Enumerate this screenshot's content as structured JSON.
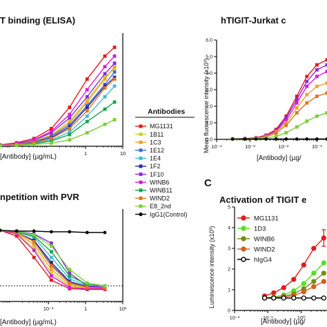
{
  "chart_data": [
    {
      "type": "line",
      "title": "T binding (ELISA)",
      "xlabel": "[Antibody] (µg/mL)",
      "ylabel": "",
      "xscale": "log",
      "xlim": [
        0.005,
        10
      ],
      "ylim": [
        0,
        3.2
      ],
      "ticks": [
        {
          "v": 1,
          "label": "1"
        },
        {
          "v": 10,
          "label": "10"
        }
      ],
      "x": [
        0.0016,
        0.005,
        0.014,
        0.041,
        0.12,
        0.37,
        1.1,
        3.3,
        6
      ],
      "series": [
        {
          "name": "MG1131",
          "values": [
            0.02,
            0.04,
            0.1,
            0.22,
            0.5,
            1.1,
            1.9,
            2.55,
            2.8
          ]
        },
        {
          "name": "1B11",
          "values": [
            0.02,
            0.03,
            0.07,
            0.15,
            0.32,
            0.7,
            1.3,
            1.95,
            2.2
          ]
        },
        {
          "name": "1C3",
          "values": [
            0.02,
            0.03,
            0.07,
            0.14,
            0.3,
            0.65,
            1.25,
            1.9,
            2.25
          ]
        },
        {
          "name": "1E12",
          "values": [
            0.02,
            0.03,
            0.06,
            0.12,
            0.28,
            0.6,
            1.15,
            1.75,
            2.1
          ]
        },
        {
          "name": "1E4",
          "values": [
            0.02,
            0.02,
            0.04,
            0.08,
            0.18,
            0.4,
            0.85,
            1.4,
            1.7
          ]
        },
        {
          "name": "1F2",
          "values": [
            0.02,
            0.03,
            0.05,
            0.1,
            0.24,
            0.55,
            1.1,
            1.7,
            1.95
          ]
        },
        {
          "name": "1F10",
          "values": [
            0.02,
            0.03,
            0.08,
            0.17,
            0.38,
            0.8,
            1.4,
            2.05,
            2.35
          ]
        },
        {
          "name": "WINB6",
          "values": [
            0.02,
            0.03,
            0.08,
            0.18,
            0.42,
            0.9,
            1.6,
            2.25,
            2.55
          ]
        },
        {
          "name": "WINB11",
          "values": [
            0.02,
            0.02,
            0.04,
            0.07,
            0.15,
            0.33,
            0.7,
            1.05,
            1.25
          ]
        },
        {
          "name": "WIND2",
          "values": [
            0.02,
            0.02,
            0.05,
            0.1,
            0.22,
            0.5,
            1.0,
            1.65,
            1.9
          ]
        },
        {
          "name": "E8_2nd",
          "values": [
            0.02,
            0.02,
            0.03,
            0.05,
            0.09,
            0.18,
            0.38,
            0.62,
            0.75
          ]
        }
      ]
    },
    {
      "type": "line",
      "title": "hTIGIT-Jurkat c",
      "xlabel": "[Antibody] (µg/",
      "ylabel": "Mean fluorescence intensity (x10³)",
      "xscale": "log",
      "xlim": [
        0.0001,
        0.2
      ],
      "ylim": [
        0,
        6.0
      ],
      "xticks": [
        {
          "v": 0.0001,
          "label": "10⁻⁴"
        },
        {
          "v": 0.001,
          "label": "10⁻³"
        },
        {
          "v": 0.01,
          "label": "10⁻²"
        },
        {
          "v": 0.1,
          "label": "10⁻¹"
        }
      ],
      "yticks": [
        "0.0",
        "1.0",
        "2.0",
        "3.0",
        "4.0",
        "5.0",
        "6.0"
      ],
      "x": [
        0.0003,
        0.0007,
        0.0015,
        0.003,
        0.006,
        0.012,
        0.025,
        0.05,
        0.1,
        0.2
      ],
      "series": [
        {
          "name": "MG1131",
          "values": [
            0.02,
            0.05,
            0.1,
            0.25,
            0.6,
            1.4,
            2.6,
            3.8,
            4.5,
            4.8
          ]
        },
        {
          "name": "1F10",
          "values": [
            0.02,
            0.04,
            0.09,
            0.22,
            0.55,
            1.3,
            2.4,
            3.5,
            4.2,
            4.5
          ]
        },
        {
          "name": "WINB6",
          "values": [
            0.02,
            0.04,
            0.08,
            0.2,
            0.5,
            1.15,
            2.2,
            3.2,
            3.8,
            4.1
          ]
        },
        {
          "name": "1C3",
          "values": [
            0.02,
            0.03,
            0.07,
            0.17,
            0.45,
            1.0,
            1.9,
            2.7,
            3.2,
            3.4
          ]
        },
        {
          "name": "WIND2",
          "values": [
            0.02,
            0.03,
            0.06,
            0.15,
            0.38,
            0.85,
            1.6,
            2.2,
            2.6,
            2.8
          ]
        },
        {
          "name": "E8_2nd",
          "values": [
            0.02,
            0.02,
            0.04,
            0.08,
            0.18,
            0.4,
            0.75,
            1.1,
            1.4,
            1.6
          ]
        },
        {
          "name": "IgG1(Control)",
          "values": [
            0.02,
            0.02,
            0.02,
            0.02,
            0.02,
            0.02,
            0.02,
            0.02,
            0.02,
            0.02
          ]
        }
      ]
    },
    {
      "type": "line",
      "title": "npetition with PVR",
      "xlabel": "[Antibody] (µg/mL)",
      "ylabel": "",
      "xscale": "log",
      "xlim": [
        0.005,
        10
      ],
      "ylim": [
        0,
        1.3
      ],
      "xticks": [
        {
          "v": 0.1,
          "label": "10⁻¹"
        },
        {
          "v": 1,
          "label": "1"
        },
        {
          "v": 10,
          "label": "10¹"
        }
      ],
      "baseline": 0.22,
      "x": [
        0.005,
        0.014,
        0.041,
        0.12,
        0.37,
        1.1,
        3.3
      ],
      "series": [
        {
          "name": "MG1131",
          "values": [
            1.0,
            0.92,
            0.62,
            0.3,
            0.18,
            0.17,
            0.17
          ]
        },
        {
          "name": "1B11",
          "values": [
            1.0,
            0.95,
            0.75,
            0.4,
            0.22,
            0.19,
            0.18
          ]
        },
        {
          "name": "1C3",
          "values": [
            1.0,
            0.96,
            0.8,
            0.45,
            0.24,
            0.2,
            0.19
          ]
        },
        {
          "name": "1E12",
          "values": [
            1.0,
            0.97,
            0.85,
            0.52,
            0.27,
            0.21,
            0.2
          ]
        },
        {
          "name": "1E4",
          "values": [
            1.0,
            0.98,
            0.9,
            0.62,
            0.32,
            0.22,
            0.2
          ]
        },
        {
          "name": "1F2",
          "values": [
            1.0,
            0.97,
            0.86,
            0.55,
            0.28,
            0.21,
            0.2
          ]
        },
        {
          "name": "1F10",
          "values": [
            1.0,
            0.99,
            0.95,
            0.82,
            0.4,
            0.22,
            0.2
          ]
        },
        {
          "name": "WINB6",
          "values": [
            1.0,
            0.95,
            0.72,
            0.36,
            0.2,
            0.18,
            0.18
          ]
        },
        {
          "name": "WINB11",
          "values": [
            1.0,
            0.98,
            0.92,
            0.7,
            0.36,
            0.24,
            0.22
          ]
        },
        {
          "name": "WIND2",
          "values": [
            1.0,
            0.97,
            0.84,
            0.5,
            0.26,
            0.2,
            0.19
          ]
        },
        {
          "name": "E8_2nd",
          "values": [
            1.0,
            0.99,
            0.94,
            0.78,
            0.45,
            0.26,
            0.22
          ]
        },
        {
          "name": "IgG1(Control)",
          "values": [
            1.0,
            0.99,
            0.99,
            0.98,
            0.98,
            0.97,
            0.97
          ]
        }
      ]
    },
    {
      "type": "line",
      "panel_label": "C",
      "title": "Activation of TIGIT e",
      "xlabel": "[Antibody] (µg/",
      "ylabel": "Luminescence intensity (x10³)",
      "xscale": "log",
      "xlim": [
        0.01,
        6
      ],
      "ylim": [
        0,
        5
      ],
      "xticks": [
        {
          "v": 0.01,
          "label": "10⁻²"
        },
        {
          "v": 0.1,
          "label": "10⁻¹"
        },
        {
          "v": 1,
          "label": "10⁰"
        }
      ],
      "yticks": [
        "0",
        "1",
        "2",
        "3",
        "4",
        "5"
      ],
      "x": [
        0.08,
        0.15,
        0.3,
        0.6,
        1.2,
        2.4,
        4.8
      ],
      "series": [
        {
          "name": "MG1131",
          "values": [
            0.7,
            0.85,
            1.1,
            1.5,
            2.2,
            3.0,
            3.5
          ]
        },
        {
          "name": "1D3",
          "values": [
            0.6,
            0.65,
            0.75,
            0.95,
            1.3,
            1.8,
            2.3
          ]
        },
        {
          "name": "WINB6",
          "values": [
            0.6,
            0.62,
            0.68,
            0.8,
            1.05,
            1.4,
            1.8
          ]
        },
        {
          "name": "WIND2",
          "values": [
            0.6,
            0.6,
            0.65,
            0.72,
            0.9,
            1.15,
            1.4
          ]
        },
        {
          "name": "hIgG4",
          "values": [
            0.6,
            0.6,
            0.6,
            0.6,
            0.6,
            0.6,
            0.6
          ]
        }
      ]
    }
  ],
  "legend_main": {
    "title": "Antibodies",
    "entries": [
      {
        "label": "MG1131",
        "color": "#e41a1c"
      },
      {
        "label": "1B11",
        "color": "#c9d22a"
      },
      {
        "label": "1C3",
        "color": "#f0a030"
      },
      {
        "label": "1E12",
        "color": "#3a6fd8"
      },
      {
        "label": "1E4",
        "color": "#3fbcd9"
      },
      {
        "label": "1F2",
        "color": "#2a2f9a"
      },
      {
        "label": "1F10",
        "color": "#8a2be2"
      },
      {
        "label": "WINB6",
        "color": "#d81bd8"
      },
      {
        "label": "WINB11",
        "color": "#15a64a"
      },
      {
        "label": "WIND2",
        "color": "#e2731e"
      },
      {
        "label": "E8_2nd",
        "color": "#7bd038"
      },
      {
        "label": "IgG1(Control)",
        "color": "#000000"
      }
    ]
  },
  "legend_c": {
    "entries": [
      {
        "label": "MG1131",
        "color": "#e41a1c"
      },
      {
        "label": "1D3",
        "color": "#55e026"
      },
      {
        "label": "WINB6",
        "color": "#7b8a1a"
      },
      {
        "label": "WIND2",
        "color": "#d25f22"
      },
      {
        "label": "hIgG4",
        "color": "#000000",
        "open": true
      }
    ]
  },
  "colors": {
    "MG1131": "#e41a1c",
    "1B11": "#c9d22a",
    "1C3": "#f0a030",
    "1E12": "#3a6fd8",
    "1E4": "#3fbcd9",
    "1F2": "#2a2f9a",
    "1F10": "#8a2be2",
    "WINB6": "#d81bd8",
    "WINB11": "#15a64a",
    "WIND2": "#e2731e",
    "E8_2nd": "#7bd038",
    "IgG1(Control)": "#000000",
    "1D3": "#55e026",
    "WINB6_c": "#7b8a1a",
    "WIND2_c": "#d25f22",
    "hIgG4": "#000000"
  }
}
